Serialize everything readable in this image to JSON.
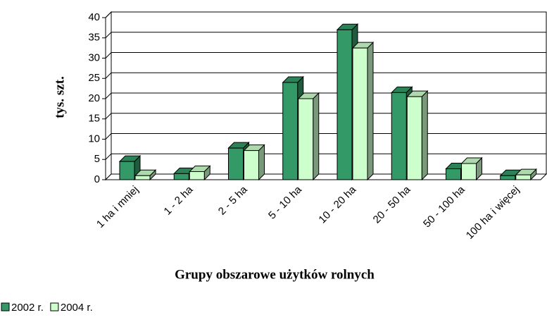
{
  "chart_data": {
    "type": "bar3d",
    "categories": [
      "1 ha i mniej",
      "1 - 2 ha",
      "2 - 5 ha",
      "5 - 10 ha",
      "10 - 20 ha",
      "20 - 50 ha",
      "50 - 100 ha",
      "100 ha i więcej"
    ],
    "series": [
      {
        "name": "2002 r.",
        "color": "#339966",
        "values": [
          4.5,
          1.5,
          7.8,
          24,
          37,
          21.5,
          2.7,
          1.0
        ]
      },
      {
        "name": "2004 r.",
        "color": "#ccffcc",
        "values": [
          1.0,
          2.0,
          7.2,
          20,
          32.5,
          20.5,
          4.0,
          1.2
        ]
      }
    ],
    "ylim": [
      0,
      40
    ],
    "yticks": [
      0,
      5,
      10,
      15,
      20,
      25,
      30,
      35,
      40
    ],
    "grid": true,
    "y_label": "tys. szt.",
    "x_label": "Grupy obszarowe użytków rolnych",
    "legend": "bottom-left"
  }
}
